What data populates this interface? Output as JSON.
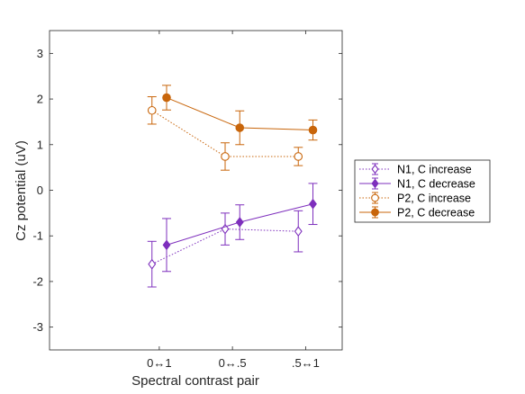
{
  "chart_data": {
    "type": "line",
    "xlabel": "Spectral contrast pair",
    "ylabel": "Cz potential (uV)",
    "categories": [
      "0↔1",
      "0↔.5",
      ".5↔1"
    ],
    "ylim": [
      -3.5,
      3.5
    ],
    "yticks": [
      -3,
      -2,
      -1,
      0,
      1,
      2,
      3
    ],
    "grid": false,
    "legend_position": "outside-right",
    "series": [
      {
        "name": "N1, C increase",
        "color": "#7e2fbd",
        "linestyle": "dotted",
        "marker": "diamond",
        "filled": false,
        "x_offset": -0.1,
        "values": [
          -1.62,
          -0.85,
          -0.9
        ],
        "error": [
          0.5,
          0.35,
          0.45
        ]
      },
      {
        "name": "N1, C decrease",
        "color": "#7e2fbd",
        "linestyle": "solid",
        "marker": "diamond",
        "filled": true,
        "x_offset": 0.1,
        "values": [
          -1.2,
          -0.7,
          -0.3
        ],
        "error": [
          0.58,
          0.38,
          0.45
        ]
      },
      {
        "name": "P2, C increase",
        "color": "#c8650a",
        "linestyle": "dotted",
        "marker": "circle",
        "filled": false,
        "x_offset": -0.1,
        "values": [
          1.75,
          0.74,
          0.74
        ],
        "error": [
          0.3,
          0.3,
          0.2
        ]
      },
      {
        "name": "P2, C decrease",
        "color": "#c8650a",
        "linestyle": "solid",
        "marker": "circle",
        "filled": true,
        "x_offset": 0.1,
        "values": [
          2.03,
          1.37,
          1.32
        ],
        "error": [
          0.27,
          0.37,
          0.22
        ]
      }
    ]
  }
}
